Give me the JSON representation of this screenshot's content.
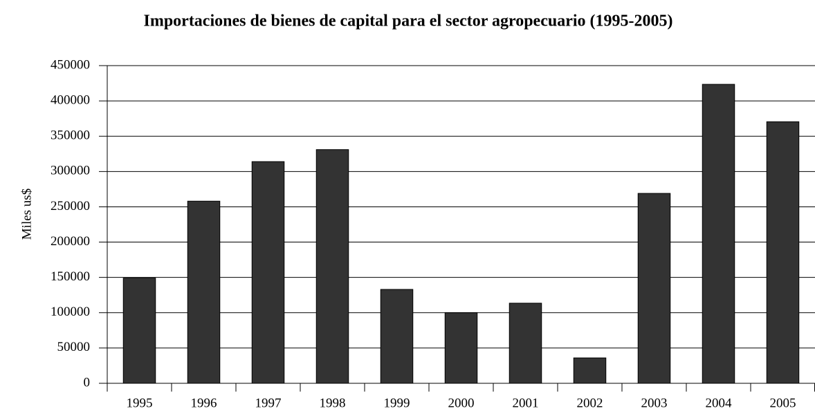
{
  "chart_data": {
    "type": "bar",
    "title": "Importaciones de bienes de capital para el sector agropecuario (1995-2005)",
    "y_label": "Miles us$",
    "categories": [
      "1995",
      "1996",
      "1997",
      "1998",
      "1999",
      "2000",
      "2001",
      "2002",
      "2003",
      "2004",
      "2005"
    ],
    "values": [
      149000,
      258000,
      314000,
      331000,
      133000,
      100000,
      113500,
      36000,
      269000,
      423500,
      370500
    ],
    "color": "#333333",
    "ylim": [
      0,
      450000
    ],
    "yticks": [
      0,
      50000,
      100000,
      150000,
      200000,
      250000,
      300000,
      350000,
      400000,
      450000
    ],
    "grid": true
  }
}
